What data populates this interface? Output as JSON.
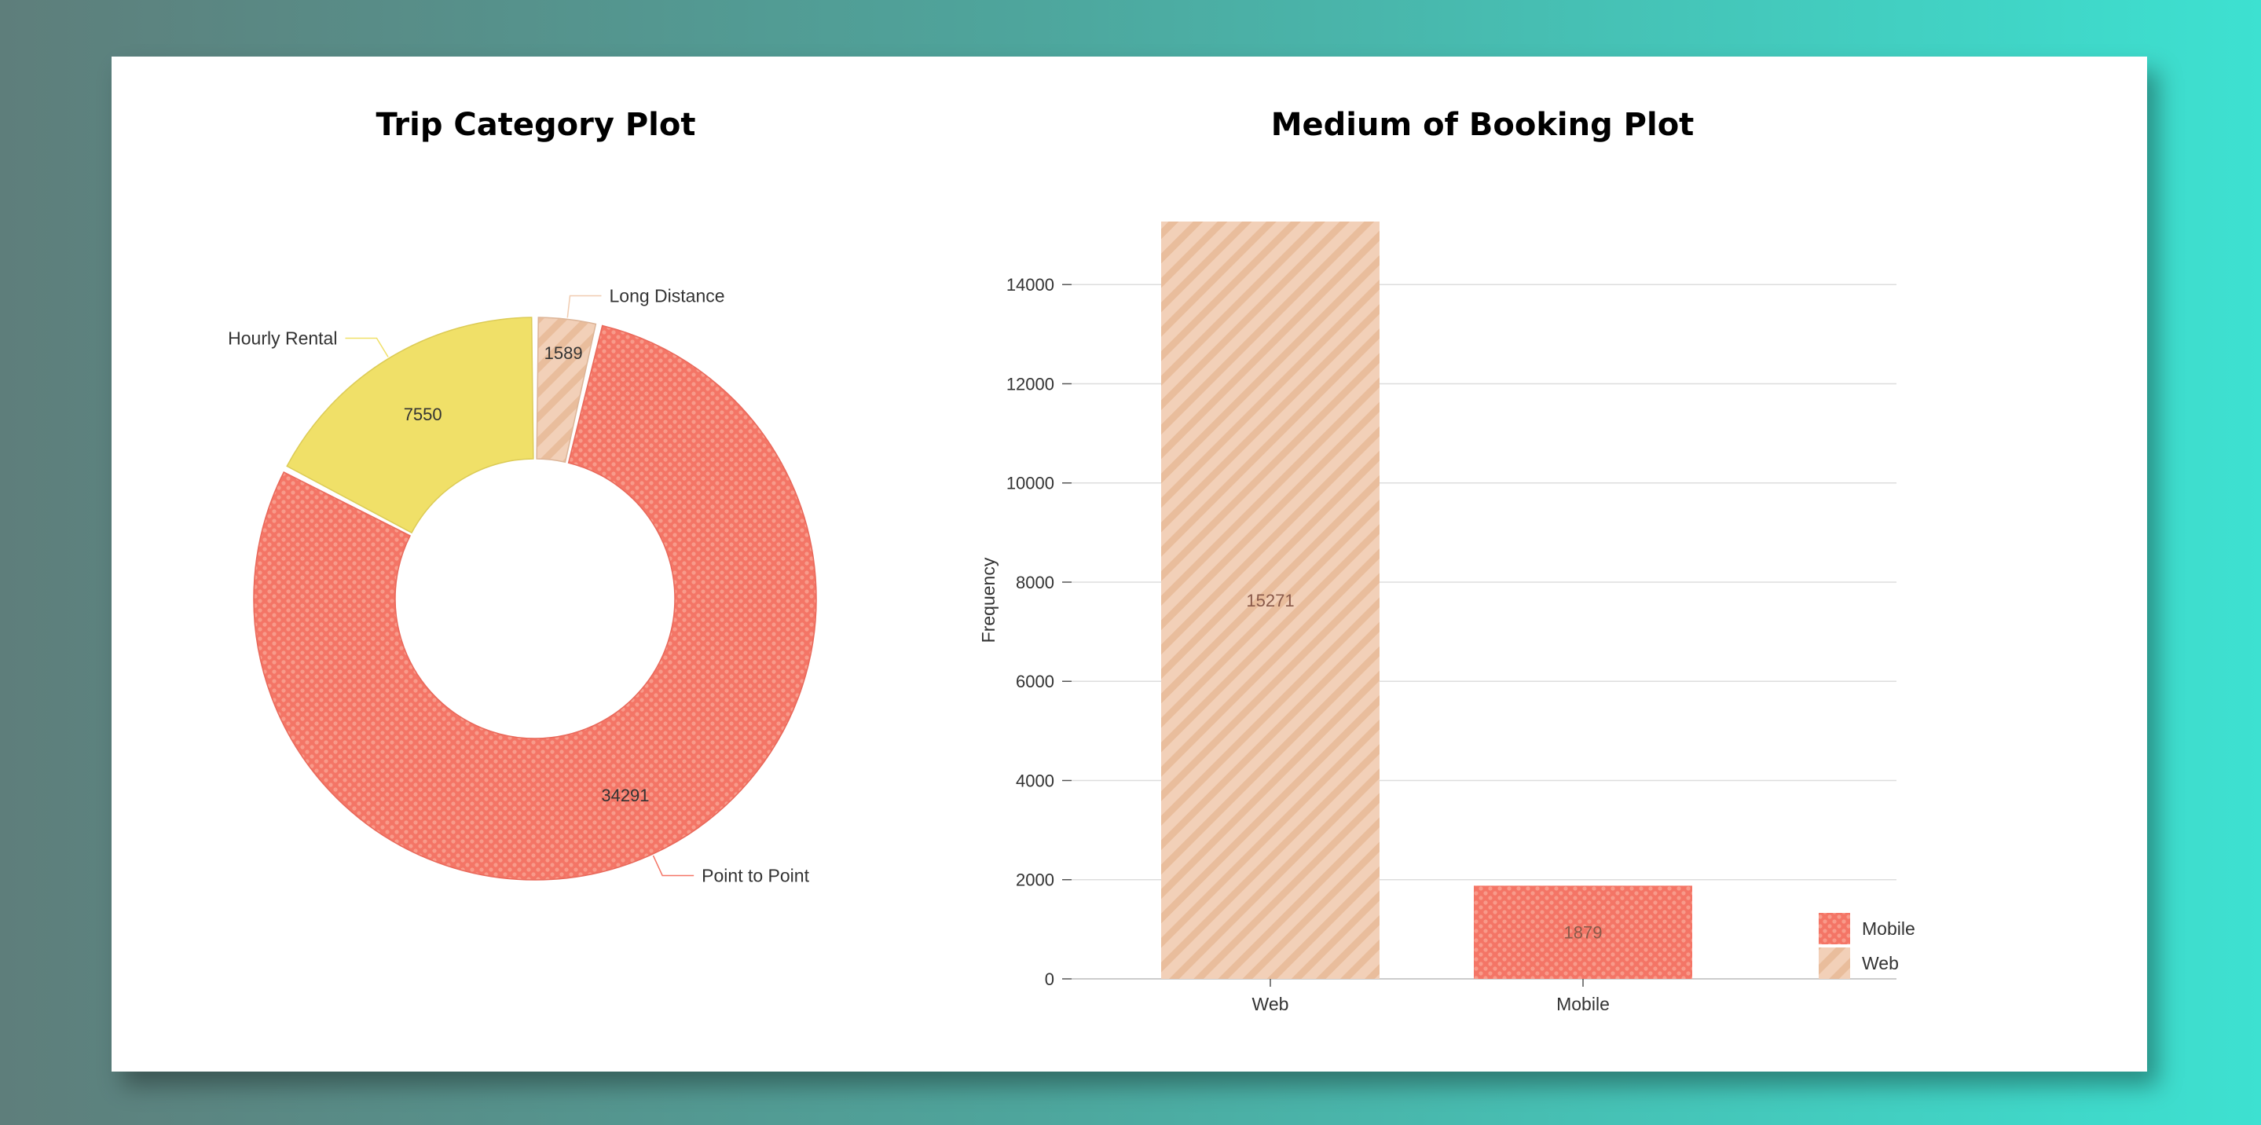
{
  "chart_data": [
    {
      "type": "pie",
      "subtype": "donut",
      "title": "Trip Category Plot",
      "slices": [
        {
          "label": "Point to Point",
          "value": 34291,
          "color": "#f47566",
          "pattern": "dots"
        },
        {
          "label": "Hourly Rental",
          "value": 7550,
          "color": "#f0e068",
          "pattern": "none"
        },
        {
          "label": "Long Distance",
          "value": 1589,
          "color": "#f0cbb0",
          "pattern": "stripes"
        }
      ]
    },
    {
      "type": "bar",
      "title": "Medium of Booking Plot",
      "categories": [
        "Web",
        "Mobile"
      ],
      "values": [
        15271,
        1879
      ],
      "colors": [
        "#f0cbb0",
        "#f47566"
      ],
      "patterns": [
        "stripes",
        "dots"
      ],
      "xlabel": "",
      "ylabel": "Frequency",
      "ylim": [
        0,
        15271
      ],
      "yticks": [
        0,
        2000,
        4000,
        6000,
        8000,
        10000,
        12000,
        14000
      ],
      "legend": [
        {
          "label": "Mobile",
          "color": "#f47566",
          "pattern": "dots"
        },
        {
          "label": "Web",
          "color": "#f0cbb0",
          "pattern": "stripes"
        }
      ],
      "legend_position": "bottom-right"
    }
  ]
}
